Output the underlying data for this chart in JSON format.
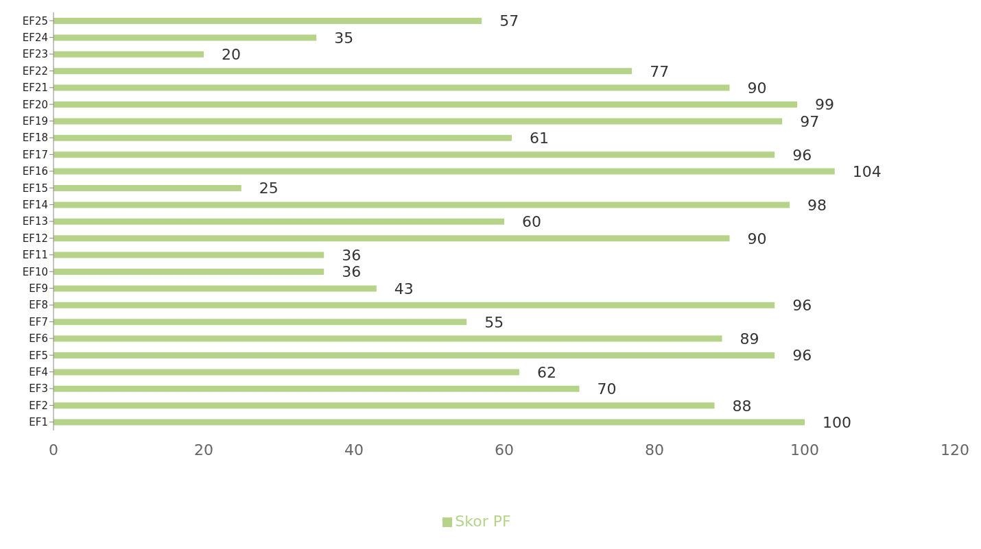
{
  "chart_data": {
    "type": "bar",
    "orientation": "horizontal",
    "categories": [
      "EF25",
      "EF24",
      "EF23",
      "EF22",
      "EF21",
      "EF20",
      "EF19",
      "EF18",
      "EF17",
      "EF16",
      "EF15",
      "EF14",
      "EF13",
      "EF12",
      "EF11",
      "EF10",
      "EF9",
      "EF8",
      "EF7",
      "EF6",
      "EF5",
      "EF4",
      "EF3",
      "EF2",
      "EF1"
    ],
    "series": [
      {
        "name": "Skor PF",
        "color": "#b5d48a",
        "values": [
          57,
          35,
          20,
          77,
          90,
          99,
          97,
          61,
          96,
          104,
          25,
          98,
          60,
          90,
          36,
          36,
          43,
          96,
          55,
          89,
          96,
          62,
          70,
          88,
          100
        ]
      }
    ],
    "xlim": [
      0,
      120
    ],
    "xticks": [
      0,
      20,
      40,
      60,
      80,
      100,
      120
    ],
    "grid": false,
    "legend": "bottom",
    "data_labels": true
  }
}
